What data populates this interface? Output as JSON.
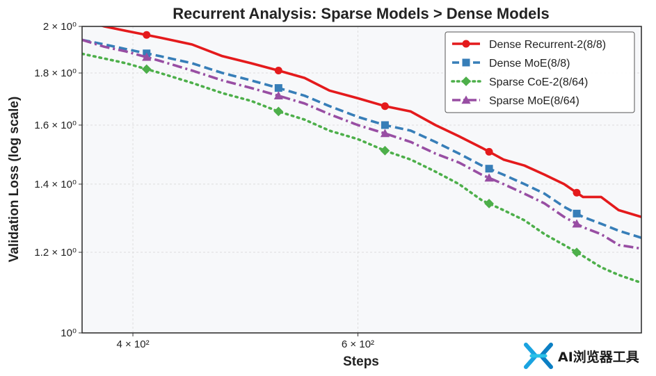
{
  "chart_data": {
    "type": "line",
    "title": "Recurrent Analysis: Sparse Models > Dense Models",
    "xlabel": "Steps",
    "ylabel": "Validation Loss (log scale)",
    "x_scale": "log",
    "y_scale": "log",
    "xlim": [
      365,
      1000
    ],
    "ylim": [
      1.0,
      2.0
    ],
    "xticks": [
      {
        "value": 400,
        "label": "4 × 10²"
      },
      {
        "value": 600,
        "label": "6 × 10²"
      }
    ],
    "yticks": [
      {
        "value": 1.0,
        "label": "10⁰"
      },
      {
        "value": 1.2,
        "label": "1.2 × 10⁰"
      },
      {
        "value": 1.4,
        "label": "1.4 × 10⁰"
      },
      {
        "value": 1.6,
        "label": "1.6 × 10⁰"
      },
      {
        "value": 1.8,
        "label": "1.8 × 10⁰"
      },
      {
        "value": 2.0,
        "label": "2 × 10⁰"
      }
    ],
    "grid": true,
    "legend_position": "top-right",
    "series": [
      {
        "name": "Dense Recurrent-2(8/8)",
        "color": "#e41a1c",
        "line_style": "solid",
        "marker": "circle",
        "x": [
          365,
          380,
          395,
          420,
          445,
          470,
          495,
          520,
          545,
          570,
          600,
          630,
          660,
          690,
          720,
          750,
          780,
          810,
          840,
          870,
          900,
          930,
          960,
          1000
        ],
        "y": [
          2.03,
          2.0,
          1.98,
          1.95,
          1.92,
          1.87,
          1.84,
          1.81,
          1.78,
          1.73,
          1.7,
          1.67,
          1.65,
          1.6,
          1.56,
          1.52,
          1.48,
          1.46,
          1.43,
          1.4,
          1.36,
          1.36,
          1.32,
          1.3
        ],
        "marker_x": [
          410,
          520,
          630,
          760,
          890
        ]
      },
      {
        "name": "Dense MoE(8/8)",
        "color": "#377eb8",
        "line_style": "dashed",
        "marker": "square",
        "x": [
          365,
          380,
          395,
          420,
          445,
          470,
          495,
          520,
          545,
          570,
          600,
          630,
          660,
          690,
          720,
          750,
          780,
          810,
          840,
          870,
          900,
          930,
          960,
          1000
        ],
        "y": [
          1.94,
          1.92,
          1.9,
          1.87,
          1.84,
          1.8,
          1.77,
          1.74,
          1.71,
          1.67,
          1.63,
          1.6,
          1.58,
          1.54,
          1.5,
          1.46,
          1.43,
          1.4,
          1.37,
          1.33,
          1.3,
          1.28,
          1.26,
          1.24
        ],
        "marker_x": [
          410,
          520,
          630,
          760,
          890
        ]
      },
      {
        "name": "Sparse CoE-2(8/64)",
        "color": "#4daf4a",
        "line_style": "dotted",
        "marker": "diamond",
        "x": [
          365,
          380,
          395,
          420,
          445,
          470,
          495,
          520,
          545,
          570,
          600,
          630,
          660,
          690,
          720,
          750,
          780,
          810,
          840,
          870,
          900,
          930,
          960,
          1000
        ],
        "y": [
          1.88,
          1.86,
          1.84,
          1.8,
          1.76,
          1.72,
          1.69,
          1.65,
          1.62,
          1.58,
          1.55,
          1.51,
          1.48,
          1.44,
          1.4,
          1.35,
          1.32,
          1.29,
          1.25,
          1.22,
          1.19,
          1.16,
          1.14,
          1.12
        ],
        "marker_x": [
          410,
          520,
          630,
          760,
          890
        ]
      },
      {
        "name": "Sparse MoE(8/64)",
        "color": "#984ea3",
        "line_style": "dashdot",
        "marker": "triangle",
        "x": [
          365,
          380,
          395,
          420,
          445,
          470,
          495,
          520,
          545,
          570,
          600,
          630,
          660,
          690,
          720,
          750,
          780,
          810,
          840,
          870,
          900,
          930,
          960,
          1000
        ],
        "y": [
          1.94,
          1.91,
          1.89,
          1.85,
          1.81,
          1.77,
          1.74,
          1.71,
          1.68,
          1.64,
          1.6,
          1.57,
          1.54,
          1.5,
          1.47,
          1.43,
          1.4,
          1.37,
          1.34,
          1.3,
          1.27,
          1.25,
          1.22,
          1.21
        ],
        "marker_x": [
          410,
          520,
          630,
          760,
          890
        ]
      }
    ]
  },
  "watermark": {
    "text": "AI浏览器工具",
    "icon": "x-logo-icon"
  }
}
